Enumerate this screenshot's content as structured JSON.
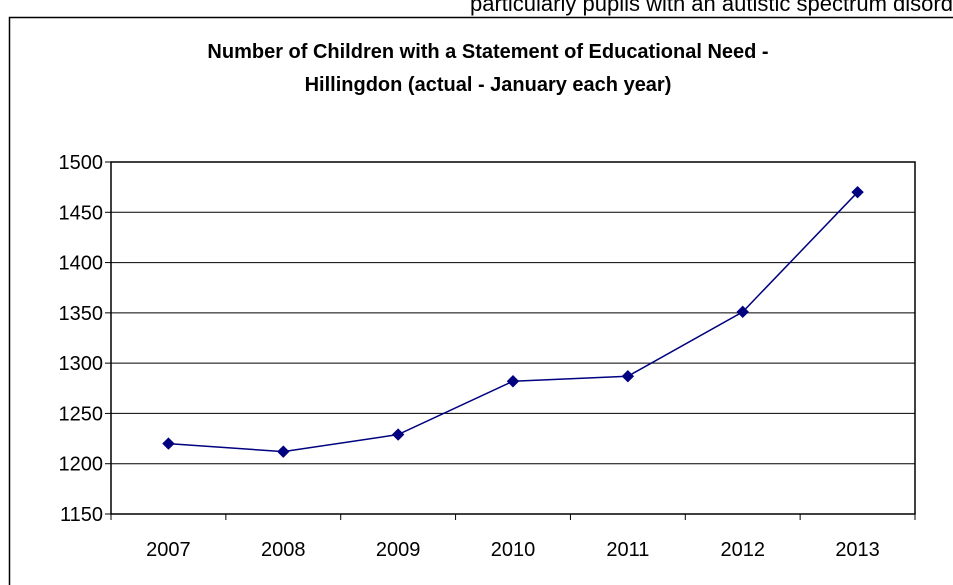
{
  "page": {
    "top_text_fragment": "particularly pupils with an autistic spectrum disorder (including"
  },
  "chart_data": {
    "type": "line",
    "title": "Number of Children with a Statement of Educational Need - Hillingdon (actual - January each year)",
    "title_lines": [
      "Number of Children with a Statement of Educational Need -",
      "Hillingdon (actual - January each year)"
    ],
    "categories": [
      "2007",
      "2008",
      "2009",
      "2010",
      "2011",
      "2012",
      "2013"
    ],
    "series": [
      {
        "values": [
          1220,
          1212,
          1229,
          1282,
          1287,
          1351,
          1470
        ]
      }
    ],
    "ylim": [
      1150,
      1500
    ],
    "yticks": [
      1150,
      1200,
      1250,
      1300,
      1350,
      1400,
      1450,
      1500
    ],
    "grid": true,
    "legend": "none",
    "colors": {
      "series": "#000080",
      "grid": "#000000",
      "frame": "#000000"
    }
  }
}
